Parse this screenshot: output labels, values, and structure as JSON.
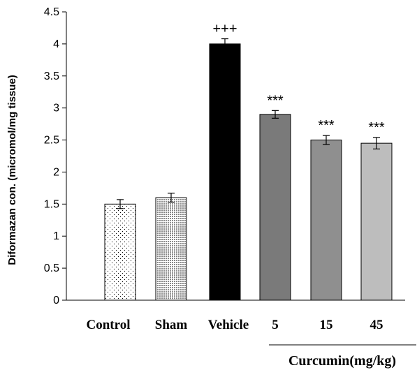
{
  "chart_data": {
    "type": "bar",
    "ylabel": "Diformazan con. (micromol/mg tissue)",
    "xlabel": "",
    "ylim": [
      0,
      4.5
    ],
    "yticks": [
      "0",
      "0.5",
      "1",
      "1.5",
      "2",
      "2.5",
      "3",
      "3.5",
      "4",
      "4.5"
    ],
    "categories": [
      "Control",
      "Sham",
      "Vehicle",
      "5",
      "15",
      "45"
    ],
    "values": [
      1.5,
      1.6,
      4.0,
      2.9,
      2.5,
      2.45
    ],
    "errors": [
      0.07,
      0.07,
      0.08,
      0.06,
      0.07,
      0.09
    ],
    "annotations": [
      "",
      "",
      "+++",
      "***",
      "***",
      "***"
    ],
    "group_label": "Curcumin(mg/kg)",
    "fills": [
      "dots-sparse",
      "dots-dense",
      "#000000",
      "#7a7a7a",
      "#8f8f8f",
      "#bdbdbd"
    ],
    "grid": false,
    "legend": "none"
  }
}
